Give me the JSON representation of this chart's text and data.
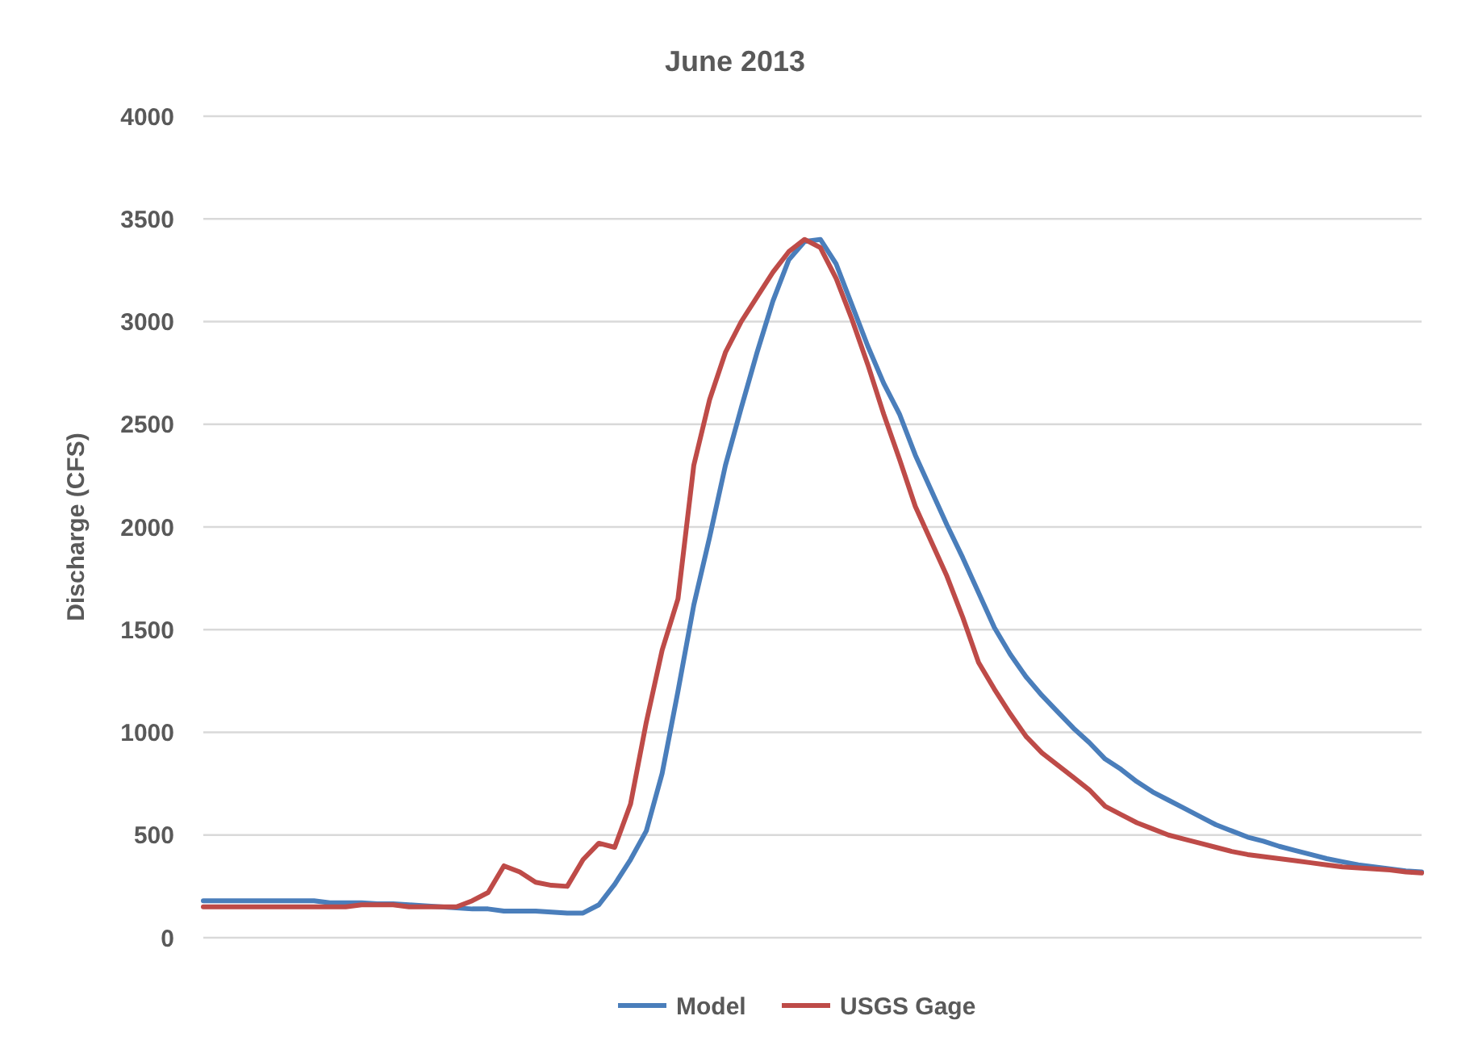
{
  "chart_data": {
    "type": "line",
    "title": "June 2013",
    "ylabel": "Discharge  (CFS)",
    "categories": [
      null,
      null,
      null,
      null,
      null,
      null,
      null,
      null,
      null,
      null,
      null,
      null,
      null,
      null,
      null,
      null,
      null,
      null,
      null,
      null,
      null,
      null,
      null,
      null,
      null,
      null,
      null,
      null,
      null,
      null,
      null,
      null,
      null,
      null,
      null,
      null,
      null,
      null,
      null,
      null,
      null,
      null,
      null,
      null,
      null,
      null,
      null,
      null,
      null,
      null,
      null,
      null,
      null,
      null,
      null,
      null,
      null,
      null,
      null,
      null,
      null,
      null,
      null,
      null,
      null,
      null,
      null,
      null,
      null,
      null,
      null,
      null,
      null,
      null,
      null,
      null,
      null,
      null
    ],
    "series": [
      {
        "name": "Model",
        "color": "#4a7ebb",
        "values": [
          180,
          180,
          180,
          180,
          180,
          180,
          180,
          180,
          170,
          170,
          170,
          165,
          165,
          160,
          155,
          150,
          145,
          140,
          140,
          130,
          130,
          130,
          125,
          120,
          120,
          160,
          260,
          380,
          520,
          800,
          1200,
          1620,
          1950,
          2300,
          2580,
          2850,
          3100,
          3300,
          3390,
          3400,
          3280,
          3080,
          2880,
          2700,
          2550,
          2350,
          2180,
          2010,
          1850,
          1680,
          1510,
          1380,
          1270,
          1180,
          1100,
          1020,
          950,
          870,
          820,
          760,
          710,
          670,
          630,
          590,
          550,
          520,
          490,
          470,
          445,
          425,
          405,
          385,
          370,
          355,
          345,
          335,
          325,
          320
        ]
      },
      {
        "name": "USGS Gage",
        "color": "#be4b48",
        "values": [
          150,
          150,
          150,
          150,
          150,
          150,
          150,
          150,
          150,
          150,
          160,
          160,
          160,
          150,
          150,
          150,
          150,
          180,
          220,
          350,
          320,
          270,
          255,
          250,
          380,
          460,
          440,
          650,
          1050,
          1400,
          1650,
          2300,
          2620,
          2850,
          3000,
          3120,
          3240,
          3340,
          3400,
          3360,
          3210,
          3010,
          2790,
          2550,
          2330,
          2100,
          1930,
          1760,
          1560,
          1340,
          1210,
          1090,
          980,
          900,
          840,
          780,
          720,
          640,
          600,
          560,
          530,
          500,
          480,
          460,
          440,
          420,
          405,
          395,
          385,
          375,
          365,
          355,
          345,
          340,
          335,
          330,
          320,
          315
        ]
      }
    ],
    "ylim": [
      0,
      4000
    ],
    "yticks": [
      0,
      500,
      1000,
      1500,
      2000,
      2500,
      3000,
      3500,
      4000
    ],
    "grid": "y",
    "legend": "bottom",
    "line_style": "solid",
    "marker": "none"
  }
}
